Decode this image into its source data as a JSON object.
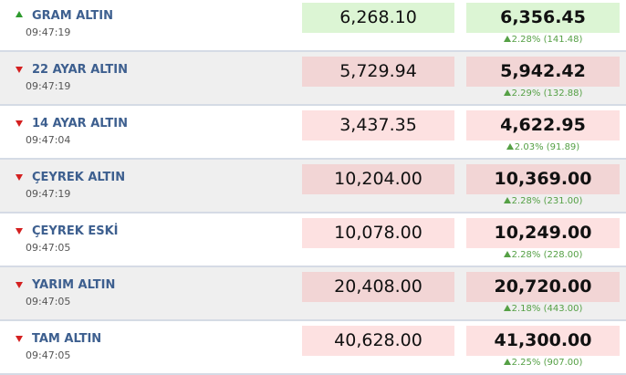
{
  "rows": [
    {
      "name": "GRAM ALTIN",
      "time": "09:47:19",
      "trend": "up",
      "buy": "6,268.10",
      "sell": "6,356.45",
      "change_pct": "2.28%",
      "change_value": "(141.48)"
    },
    {
      "name": "22 AYAR ALTIN",
      "time": "09:47:19",
      "trend": "down",
      "buy": "5,729.94",
      "sell": "5,942.42",
      "change_pct": "2.29%",
      "change_value": "(132.88)"
    },
    {
      "name": "14 AYAR ALTIN",
      "time": "09:47:04",
      "trend": "down",
      "buy": "3,437.35",
      "sell": "4,622.95",
      "change_pct": "2.03%",
      "change_value": "(91.89)"
    },
    {
      "name": "ÇEYREK ALTIN",
      "time": "09:47:19",
      "trend": "down",
      "buy": "10,204.00",
      "sell": "10,369.00",
      "change_pct": "2.28%",
      "change_value": "(231.00)"
    },
    {
      "name": "ÇEYREK ESKİ",
      "time": "09:47:05",
      "trend": "down",
      "buy": "10,078.00",
      "sell": "10,249.00",
      "change_pct": "2.28%",
      "change_value": "(228.00)"
    },
    {
      "name": "YARIM ALTIN",
      "time": "09:47:05",
      "trend": "down",
      "buy": "20,408.00",
      "sell": "20,720.00",
      "change_pct": "2.18%",
      "change_value": "(443.00)"
    },
    {
      "name": "TAM ALTIN",
      "time": "09:47:05",
      "trend": "down",
      "buy": "40,628.00",
      "sell": "41,300.00",
      "change_pct": "2.25%",
      "change_value": "(907.00)"
    }
  ]
}
